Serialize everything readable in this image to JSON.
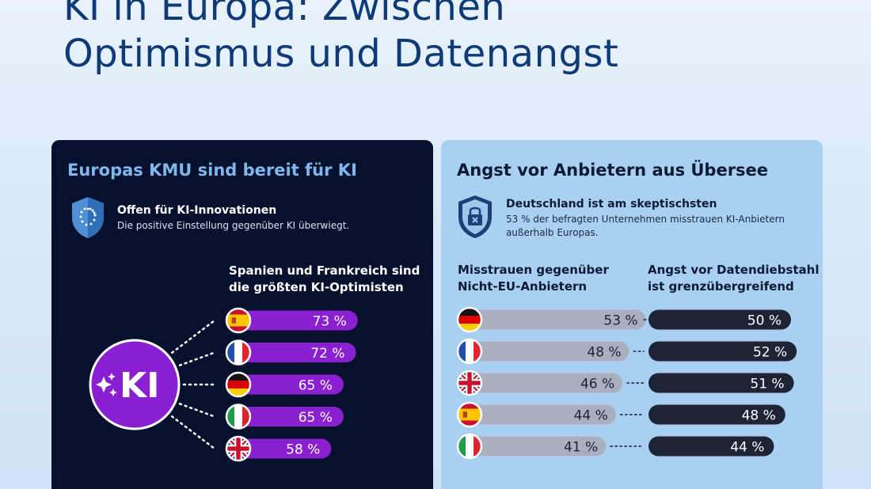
{
  "page": {
    "title_line1": "KI in Europa: Zwischen",
    "title_line2": "Optimismus und Datenangst"
  },
  "colors": {
    "left_panel_bg": "#07112e",
    "right_panel_bg": "#a9d0f0",
    "optimism_bar": "#8a20d0",
    "distrust_bar": "#a8b0bd",
    "theft_bar": "#1c2435"
  },
  "left_panel": {
    "title": "Europas KMU sind bereit für KI",
    "callout_heading": "Offen für KI-Innovationen",
    "callout_text": "Die positive Einstellung gegenüber KI überwiegt.",
    "chart_heading_line1": "Spanien und Frankreich sind",
    "chart_heading_line2": "die größten KI-Optimisten",
    "ki_badge_text": "KI",
    "icons": [
      "eu-shield-icon",
      "sparkle-icon"
    ]
  },
  "right_panel": {
    "title": "Angst vor Anbietern aus Übersee",
    "callout_heading": "Deutschland ist am skeptischsten",
    "callout_text": "53 % der befragten Unternehmen misstrauen KI-Anbietern außerhalb Europas.",
    "col1_heading_line1": "Misstrauen gegenüber",
    "col1_heading_line2": "Nicht-EU-Anbietern",
    "col2_heading_line1": "Angst vor Datendiebstahl",
    "col2_heading_line2": "ist grenzübergreifend",
    "icons": [
      "lock-shield-icon"
    ]
  },
  "chart_data": [
    {
      "type": "bar",
      "title": "Spanien und Frankreich sind die größten KI-Optimisten",
      "categories": [
        "Spanien",
        "Frankreich",
        "Deutschland",
        "Italien",
        "Vereinigtes Königreich"
      ],
      "flags": [
        "es",
        "fr",
        "de",
        "it",
        "gb"
      ],
      "values": [
        73,
        72,
        65,
        65,
        58
      ],
      "labels": [
        "73 %",
        "72 %",
        "65 %",
        "65 %",
        "58 %"
      ],
      "unit": "%"
    },
    {
      "type": "bar",
      "categories": [
        "Deutschland",
        "Frankreich",
        "Vereinigtes Königreich",
        "Spanien",
        "Italien"
      ],
      "flags": [
        "de",
        "fr",
        "gb",
        "es",
        "it"
      ],
      "series": [
        {
          "name": "Misstrauen gegenüber Nicht-EU-Anbietern",
          "values": [
            53,
            48,
            46,
            44,
            41
          ],
          "labels": [
            "53 %",
            "48 %",
            "46 %",
            "44 %",
            "41 %"
          ]
        },
        {
          "name": "Angst vor Datendiebstahl ist grenzübergreifend",
          "values": [
            50,
            52,
            51,
            48,
            44
          ],
          "labels": [
            "50 %",
            "52 %",
            "51 %",
            "48 %",
            "44 %"
          ]
        }
      ],
      "unit": "%"
    }
  ]
}
